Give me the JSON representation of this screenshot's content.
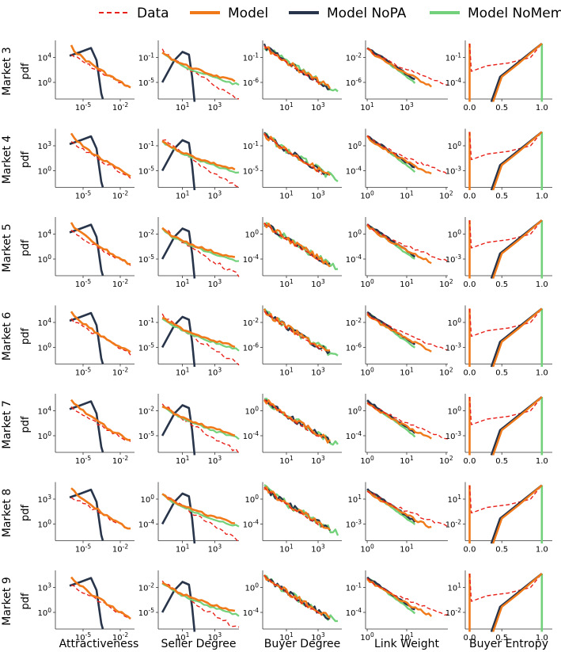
{
  "chart_data": {
    "type": "line",
    "title": "",
    "legend": {
      "placement": "top-center",
      "entries": [
        {
          "name": "Data",
          "color": "#e8221b",
          "style": "dashed"
        },
        {
          "name": "Model",
          "color": "#f07a1a",
          "style": "solid"
        },
        {
          "name": "Model NoPA",
          "color": "#273449",
          "style": "solid"
        },
        {
          "name": "Model NoMem",
          "color": "#72d17a",
          "style": "solid"
        }
      ]
    },
    "y_axis_label": "pdf",
    "rows": [
      "Market 3",
      "Market 4",
      "Market 5",
      "Market 6",
      "Market 7",
      "Market 8",
      "Market 9"
    ],
    "columns": [
      "Attractiveness",
      "Seller Degree",
      "Buyer Degree",
      "Link Weight",
      "Buyer Entropy"
    ],
    "x_scale": [
      "log",
      "log",
      "log",
      "log",
      "linear"
    ],
    "y_scale": "log",
    "grid": false,
    "tick_labels": [
      [
        {
          "x": [
            "10^-5",
            "10^-2"
          ],
          "y": [
            "10^4",
            "10^0"
          ]
        },
        {
          "x": [
            "10^1",
            "10^3"
          ],
          "y": [
            "10^-1",
            "10^-5"
          ]
        },
        {
          "x": [
            "10^1",
            "10^3"
          ],
          "y": [
            "10^-1",
            "10^-6"
          ]
        },
        {
          "x": [
            "10^1",
            "10^3"
          ],
          "y": [
            "10^-2",
            "10^-6"
          ]
        },
        {
          "x": [
            "0.0",
            "0.5",
            "1.0"
          ],
          "y": [
            "10^-1",
            "10^-4"
          ]
        }
      ],
      [
        {
          "x": [
            "10^-5",
            "10^-2"
          ],
          "y": [
            "10^3",
            "10^0"
          ]
        },
        {
          "x": [
            "10^1",
            "10^3"
          ],
          "y": [
            "10^-1",
            "10^-5"
          ]
        },
        {
          "x": [
            "10^1",
            "10^3"
          ],
          "y": [
            "10^-1",
            "10^-5"
          ]
        },
        {
          "x": [
            "10^0",
            "10^1",
            "10^2"
          ],
          "y": [
            "10^0",
            "10^-4"
          ]
        },
        {
          "x": [
            "0.0",
            "0.5",
            "1.0"
          ],
          "y": [
            "10^0",
            "10^-3"
          ]
        }
      ],
      [
        {
          "x": [
            "10^-5",
            "10^-2"
          ],
          "y": [
            "10^4",
            "10^0"
          ]
        },
        {
          "x": [
            "10^1",
            "10^3"
          ],
          "y": [
            "10^-2",
            "10^-5"
          ]
        },
        {
          "x": [
            "10^1",
            "10^3"
          ],
          "y": [
            "10^0",
            "10^-4"
          ]
        },
        {
          "x": [
            "10^0",
            "10^1",
            "10^2"
          ],
          "y": [
            "10^0",
            "10^-4"
          ]
        },
        {
          "x": [
            "0.0",
            "0.5",
            "1.0"
          ],
          "y": [
            "10^0",
            "10^-3"
          ]
        }
      ],
      [
        {
          "x": [
            "10^-5",
            "10^-2"
          ],
          "y": [
            "10^4",
            "10^0"
          ]
        },
        {
          "x": [
            "10^1",
            "10^3"
          ],
          "y": [
            "10^-1",
            "10^-5"
          ]
        },
        {
          "x": [
            "10^1",
            "10^3"
          ],
          "y": [
            "10^-2",
            "10^-6"
          ]
        },
        {
          "x": [
            "10^0",
            "10^1",
            "10^2"
          ],
          "y": [
            "10^-2",
            "10^-6"
          ]
        },
        {
          "x": [
            "0.0",
            "0.5",
            "1.0"
          ],
          "y": [
            "10^0",
            "10^-3"
          ]
        }
      ],
      [
        {
          "x": [
            "10^-5",
            "10^-2"
          ],
          "y": [
            "10^4",
            "10^0"
          ]
        },
        {
          "x": [
            "10^1",
            "10^3"
          ],
          "y": [
            "10^-2",
            "10^-5"
          ]
        },
        {
          "x": [
            "10^1",
            "10^3"
          ],
          "y": [
            "10^0",
            "10^-4"
          ]
        },
        {
          "x": [
            "10^0",
            "10^1",
            "10^2"
          ],
          "y": [
            "10^0",
            "10^-4"
          ]
        },
        {
          "x": [
            "0.0",
            "0.5",
            "1.0"
          ],
          "y": [
            "10^0",
            "10^-3"
          ]
        }
      ],
      [
        {
          "x": [
            "10^-5",
            "10^-2"
          ],
          "y": [
            "10^3",
            "10^0"
          ]
        },
        {
          "x": [
            "10^1",
            "10^3"
          ],
          "y": [
            "10^0",
            "10^-4"
          ]
        },
        {
          "x": [
            "10^1",
            "10^3"
          ],
          "y": [
            "10^0",
            "10^-4"
          ]
        },
        {
          "x": [
            "10^0",
            "10^1"
          ],
          "y": [
            "10^1",
            "10^-3"
          ]
        },
        {
          "x": [
            "0.0",
            "0.5",
            "1.0"
          ],
          "y": [
            "10^1",
            "10^-2"
          ]
        }
      ],
      [
        {
          "x": [
            "10^-5",
            "10^-2"
          ],
          "y": [
            "10^3",
            "10^0"
          ]
        },
        {
          "x": [
            "10^1",
            "10^3"
          ],
          "y": [
            "10^-2",
            "10^-5"
          ]
        },
        {
          "x": [
            "10^1",
            "10^3"
          ],
          "y": [
            "10^0",
            "10^-4"
          ]
        },
        {
          "x": [
            "10^0",
            "10^1"
          ],
          "y": [
            "10^-1",
            "10^-4"
          ]
        },
        {
          "x": [
            "0.0",
            "0.5",
            "1.0"
          ],
          "y": [
            "10^1",
            "10^-2"
          ]
        }
      ]
    ]
  }
}
